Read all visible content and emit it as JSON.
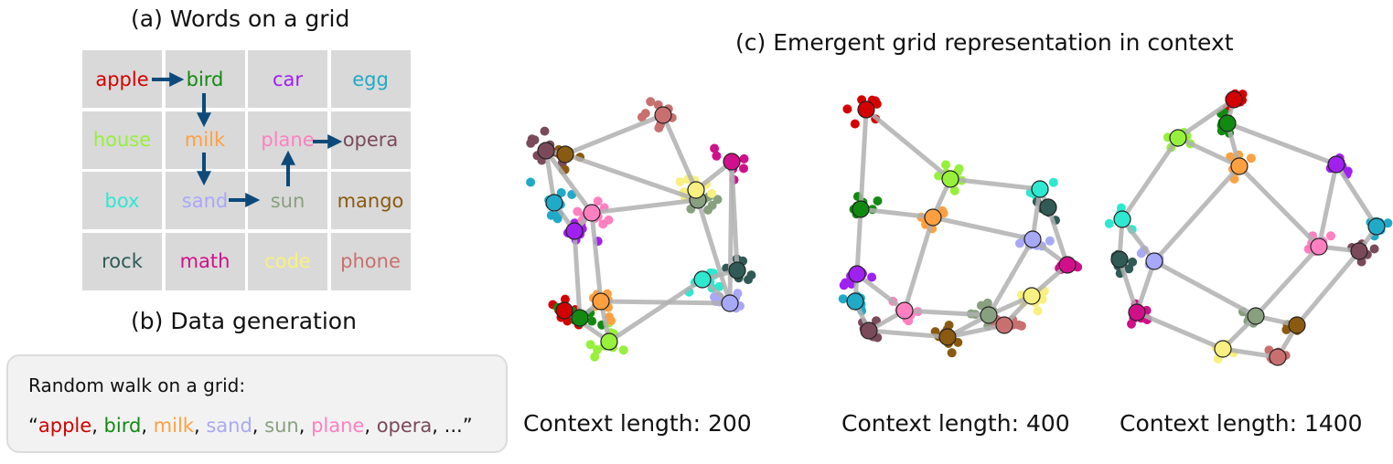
{
  "panel_a": {
    "title": "(a) Words on a grid",
    "rows": [
      [
        {
          "word": "apple",
          "color": "#d40000"
        },
        {
          "word": "bird",
          "color": "#128a12"
        },
        {
          "word": "car",
          "color": "#a020f0"
        },
        {
          "word": "egg",
          "color": "#20aac8"
        }
      ],
      [
        {
          "word": "house",
          "color": "#96f03c"
        },
        {
          "word": "milk",
          "color": "#ffa040"
        },
        {
          "word": "plane",
          "color": "#ff80c0"
        },
        {
          "word": "opera",
          "color": "#7a4a5a"
        }
      ],
      [
        {
          "word": "box",
          "color": "#2ee8d0"
        },
        {
          "word": "sand",
          "color": "#a8a8f8"
        },
        {
          "word": "sun",
          "color": "#88a080"
        },
        {
          "word": "mango",
          "color": "#8a5a10"
        }
      ],
      [
        {
          "word": "rock",
          "color": "#2f5a55"
        },
        {
          "word": "math",
          "color": "#d0108a"
        },
        {
          "word": "code",
          "color": "#f8f080"
        },
        {
          "word": "phone",
          "color": "#c87070"
        }
      ]
    ],
    "arrow_color": "#0d4a7a"
  },
  "panel_b": {
    "title": "(b) Data generation",
    "box_heading": "Random walk on a grid:",
    "open_quote": "“",
    "sequence": [
      {
        "word": "apple",
        "color": "#d40000"
      },
      {
        "word": "bird",
        "color": "#128a12"
      },
      {
        "word": "milk",
        "color": "#ffa040"
      },
      {
        "word": "sand",
        "color": "#a8a8f8"
      },
      {
        "word": "sun",
        "color": "#88a080"
      },
      {
        "word": "plane",
        "color": "#ff80c0"
      },
      {
        "word": "opera",
        "color": "#7a4a5a"
      }
    ],
    "separator": ", ",
    "ellipsis": "...",
    "close_quote": "”"
  },
  "panel_c": {
    "title": "(c) Emergent grid representation in context",
    "edge_color": "#b0b0b0",
    "plots": [
      {
        "caption": "Context length: 200"
      },
      {
        "caption": "Context length: 400"
      },
      {
        "caption": "Context length: 1400"
      }
    ]
  }
}
